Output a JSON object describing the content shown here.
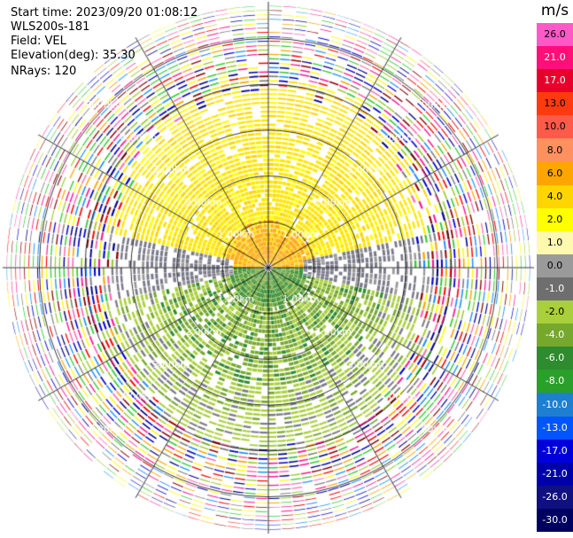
{
  "header": {
    "start_time": "Start time: 2023/09/20 01:08:12",
    "station": "WLS200s-181",
    "field": "Field: VEL",
    "elevation": "Elevation(deg): 35.30",
    "nrays": "NRays: 120"
  },
  "chart_data": {
    "type": "heatmap",
    "subtype": "polar-ppi",
    "field": "VEL",
    "nrays": 120,
    "units": "m/s",
    "max_range_km": 5.8,
    "range_rings_km": [
      1.0,
      2.0,
      3.0,
      4.0,
      5.0
    ],
    "ring_labels": [
      "1.00km",
      "2.00km",
      "3.00km",
      "4.00km",
      "5.00km"
    ],
    "radial_spoke_interval_deg": 30,
    "colorbar": {
      "title": "m/s",
      "tick_labels": [
        "26.0",
        "21.0",
        "17.0",
        "13.0",
        "10.0",
        "8.0",
        "6.0",
        "4.0",
        "2.0",
        "1.0",
        "0.0",
        "-1.0",
        "-2.0",
        "-4.0",
        "-6.0",
        "-8.0",
        "-10.0",
        "-13.0",
        "-17.0",
        "-21.0",
        "-26.0",
        "-30.0"
      ],
      "colors": [
        "#ff59c8",
        "#ff0f77",
        "#e8002d",
        "#ff3a10",
        "#ff5a4a",
        "#ff9060",
        "#ffa500",
        "#ffd500",
        "#ffff00",
        "#fff9b0",
        "#9a9a9a",
        "#6e6e6e",
        "#a9d03a",
        "#76a82e",
        "#2e8b2e",
        "#2aa02a",
        "#1e7fd0",
        "#0055ff",
        "#0000dd",
        "#0000aa",
        "#101080",
        "#000060"
      ]
    },
    "sectors": {
      "north_near": "#ffa500",
      "north_mid": "#ffe600",
      "south_near": "#a9d03a",
      "south_mid": "#2e8b2e",
      "east_west": "#7a7a8a",
      "noise_colors": [
        "#ff1493",
        "#ff0000",
        "#ffff00",
        "#0000cd",
        "#00008b",
        "#1e90ff",
        "#32cd32",
        "#ff69b4",
        "#808080",
        "#ffa500",
        "#8b0000",
        "#9acd32"
      ]
    }
  }
}
